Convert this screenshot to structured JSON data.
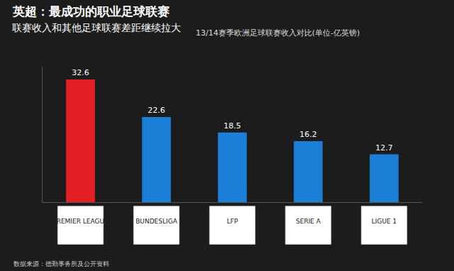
{
  "chart_data": {
    "type": "bar",
    "title": "英超：最成功的职业足球联赛",
    "subtitle": "联赛收入和其他足球联赛差距继续拉大",
    "annotations": [
      "13/14赛季欧洲足球联赛收入对比(单位-亿英镑)",
      "数据来源：德勤事务所及公开资料"
    ],
    "categories": [
      "PREMIER LEAGUE",
      "BUNDESLIGA",
      "LFP",
      "SERIE A",
      "LIGUE 1"
    ],
    "values": [
      32.6,
      22.6,
      18.5,
      16.2,
      12.7
    ],
    "colors": [
      "#e41f26",
      "#1b7fd8",
      "#1b7fd8",
      "#1b7fd8",
      "#1b7fd8"
    ],
    "ylim": [
      0,
      36
    ],
    "grid": false,
    "data_labels": true,
    "tick_labels": "x"
  }
}
